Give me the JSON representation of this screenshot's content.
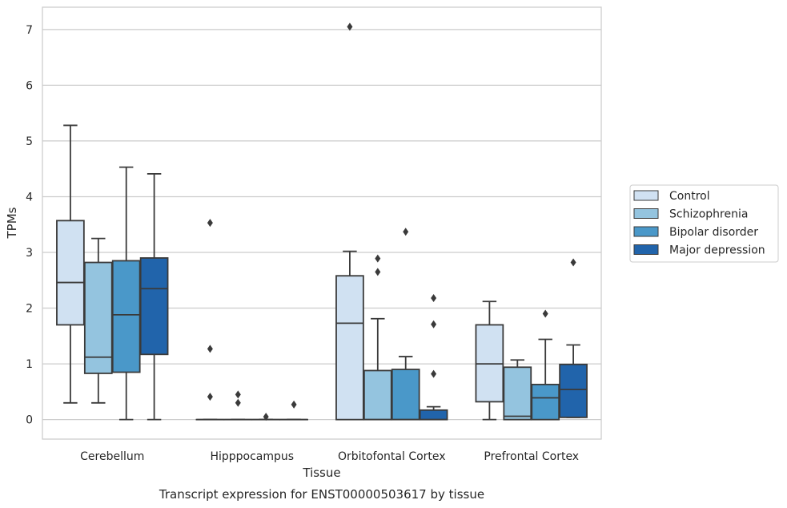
{
  "chart_data": {
    "type": "box",
    "xlabel": "Tissue",
    "ylabel": "TPMs",
    "caption": "Transcript expression for ENST00000503617 by tissue",
    "ylim": [
      -0.35,
      7.4
    ],
    "yticks": [
      "0",
      "1",
      "2",
      "3",
      "4",
      "5",
      "6",
      "7"
    ],
    "grid": true,
    "legend_position": "right",
    "categories": [
      "Cerebellum",
      "Hipppocampus",
      "Orbitofontal Cortex",
      "Prefrontal Cortex"
    ],
    "series": [
      {
        "name": "Control",
        "color": "#d0e1f2",
        "boxes": [
          {
            "whislo": 0.3,
            "q1": 1.7,
            "med": 2.46,
            "q3": 3.57,
            "whishi": 5.28,
            "fliers": []
          },
          {
            "whislo": 0,
            "q1": 0,
            "med": 0,
            "q3": 0,
            "whishi": 0,
            "fliers": [
              3.53,
              1.27,
              0.41
            ]
          },
          {
            "whislo": 0,
            "q1": 0,
            "med": 1.73,
            "q3": 2.58,
            "whishi": 3.02,
            "fliers": [
              7.05
            ]
          },
          {
            "whislo": 0,
            "q1": 0.32,
            "med": 1.0,
            "q3": 1.7,
            "whishi": 2.12,
            "fliers": []
          }
        ]
      },
      {
        "name": "Schizophrenia",
        "color": "#94c4df",
        "boxes": [
          {
            "whislo": 0.3,
            "q1": 0.83,
            "med": 1.12,
            "q3": 2.82,
            "whishi": 3.25,
            "fliers": []
          },
          {
            "whislo": 0,
            "q1": 0,
            "med": 0,
            "q3": 0,
            "whishi": 0,
            "fliers": [
              0.45,
              0.3
            ]
          },
          {
            "whislo": 0,
            "q1": 0,
            "med": 0,
            "q3": 0.88,
            "whishi": 1.81,
            "fliers": [
              2.89,
              2.65
            ]
          },
          {
            "whislo": 0,
            "q1": 0,
            "med": 0.06,
            "q3": 0.94,
            "whishi": 1.07,
            "fliers": []
          }
        ]
      },
      {
        "name": "Bipolar disorder",
        "color": "#4a98c9",
        "boxes": [
          {
            "whislo": 0,
            "q1": 0.85,
            "med": 1.88,
            "q3": 2.85,
            "whishi": 4.53,
            "fliers": []
          },
          {
            "whislo": 0,
            "q1": 0,
            "med": 0,
            "q3": 0,
            "whishi": 0,
            "fliers": [
              0.05
            ]
          },
          {
            "whislo": 0,
            "q1": 0,
            "med": 0,
            "q3": 0.9,
            "whishi": 1.13,
            "fliers": [
              3.37
            ]
          },
          {
            "whislo": 0,
            "q1": 0,
            "med": 0.39,
            "q3": 0.63,
            "whishi": 1.44,
            "fliers": [
              1.9
            ]
          }
        ]
      },
      {
        "name": "Major depression",
        "color": "#2164ab",
        "boxes": [
          {
            "whislo": 0,
            "q1": 1.17,
            "med": 2.35,
            "q3": 2.9,
            "whishi": 4.41,
            "fliers": []
          },
          {
            "whislo": 0,
            "q1": 0,
            "med": 0,
            "q3": 0,
            "whishi": 0,
            "fliers": [
              0.27
            ]
          },
          {
            "whislo": 0,
            "q1": 0,
            "med": 0,
            "q3": 0.17,
            "whishi": 0.23,
            "fliers": [
              2.18,
              1.71,
              0.82
            ]
          },
          {
            "whislo": 0.04,
            "q1": 0.04,
            "med": 0.54,
            "q3": 0.99,
            "whishi": 1.34,
            "fliers": [
              2.82
            ]
          }
        ]
      }
    ]
  }
}
